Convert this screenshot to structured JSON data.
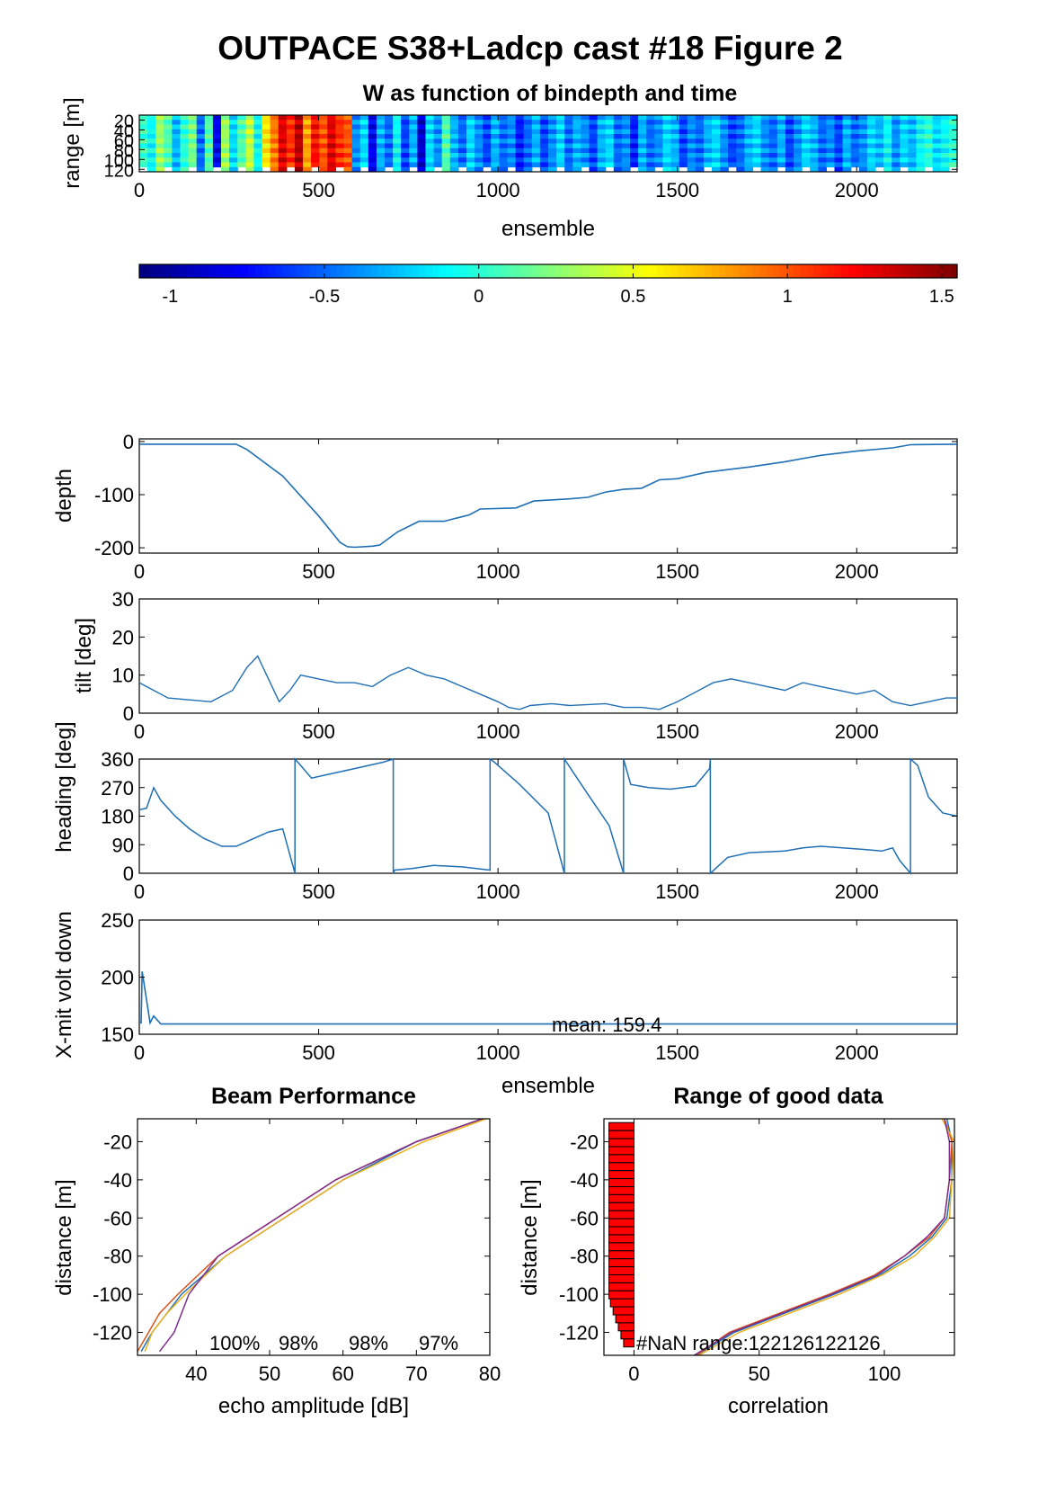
{
  "figure": {
    "title": "OUTPACE S38+Ladcp cast #18 Figure 2"
  },
  "colors": {
    "line": "#1f6fb5",
    "beam": [
      "#1f6fb5",
      "#d95319",
      "#edb120",
      "#7e2f8e"
    ],
    "nan_bars": "#ff0000"
  },
  "chart_data": [
    {
      "id": "w_image",
      "type": "heatmap",
      "title": "W as function of bindepth and time",
      "xlabel": "ensemble",
      "ylabel": "range [m]",
      "xlim": [
        0,
        2280
      ],
      "ylim": [
        125,
        10
      ],
      "x_ticks": [
        "0",
        "500",
        "1000",
        "1500",
        "2000"
      ],
      "y_ticks": [
        "20",
        "40",
        "60",
        "80",
        "100",
        "120"
      ],
      "colormap": "jet",
      "clim": [
        -1.1,
        1.55
      ],
      "column_values": [
        0.05,
        -0.1,
        0.3,
        0.1,
        -0.3,
        0.0,
        0.2,
        -0.5,
        0.1,
        -0.8,
        0.3,
        -0.2,
        0.1,
        0.4,
        -0.1,
        0.6,
        0.9,
        1.3,
        1.1,
        1.4,
        0.8,
        1.2,
        1.0,
        1.3,
        1.1,
        1.0,
        -0.4,
        -0.2,
        -0.8,
        -0.3,
        -0.5,
        -0.1,
        -0.6,
        -0.3,
        -0.9,
        -0.2,
        -0.4,
        0.1,
        -0.3,
        -0.5,
        -0.2,
        -0.4,
        -0.6,
        -0.3,
        -0.5,
        -0.4,
        -0.7,
        -0.5,
        -0.3,
        -0.6,
        -0.4,
        -0.2,
        -0.5,
        -0.3,
        -0.4,
        -0.6,
        -0.3,
        -0.2,
        -0.5,
        -0.4,
        -0.7,
        -0.3,
        -0.5,
        -0.4,
        -0.2,
        -0.3,
        -0.6,
        -0.4,
        -0.5,
        -0.3,
        -0.2,
        -0.4,
        -0.6,
        -0.5,
        -0.3,
        -0.2,
        -0.4,
        -0.5,
        -0.3,
        -0.6,
        -0.4,
        -0.2,
        -0.3,
        -0.5,
        -0.4,
        -0.6,
        -0.3,
        -0.5,
        -0.4,
        -0.2,
        -0.3,
        -0.1,
        -0.4,
        -0.2,
        -0.3,
        -0.1,
        0.0,
        -0.2,
        -0.1,
        0.0
      ],
      "colorbar": {
        "clim": [
          -1.1,
          1.55
        ],
        "ticks": [
          -1,
          -0.5,
          0,
          0.5,
          1,
          1.5
        ],
        "tick_labels": [
          "-1",
          "-0.5",
          "0",
          "0.5",
          "1",
          "1.5"
        ]
      }
    },
    {
      "id": "depth",
      "type": "line",
      "ylabel": "depth",
      "xlim": [
        0,
        2280
      ],
      "ylim": [
        -210,
        5
      ],
      "x_ticks": [
        "0",
        "500",
        "1000",
        "1500",
        "2000"
      ],
      "y_ticks": [
        "0",
        "-100",
        "-200"
      ],
      "x": [
        0,
        270,
        300,
        400,
        500,
        560,
        580,
        600,
        650,
        670,
        720,
        780,
        850,
        920,
        950,
        1050,
        1100,
        1200,
        1250,
        1300,
        1350,
        1400,
        1450,
        1500,
        1580,
        1650,
        1700,
        1800,
        1900,
        2000,
        2100,
        2150,
        2280
      ],
      "y": [
        -5,
        -5,
        -15,
        -65,
        -140,
        -190,
        -198,
        -199,
        -197,
        -195,
        -170,
        -150,
        -150,
        -138,
        -127,
        -125,
        -112,
        -108,
        -105,
        -95,
        -90,
        -88,
        -72,
        -70,
        -58,
        -52,
        -48,
        -38,
        -26,
        -18,
        -12,
        -6,
        -5
      ]
    },
    {
      "id": "tilt",
      "type": "line",
      "ylabel": "tilt [deg]",
      "xlim": [
        0,
        2280
      ],
      "ylim": [
        0,
        30
      ],
      "x_ticks": [
        "0",
        "500",
        "1000",
        "1500",
        "2000"
      ],
      "y_ticks": [
        "0",
        "10",
        "20",
        "30"
      ],
      "x": [
        0,
        40,
        80,
        140,
        200,
        260,
        300,
        330,
        360,
        390,
        420,
        450,
        500,
        550,
        600,
        650,
        700,
        750,
        800,
        850,
        900,
        950,
        1000,
        1030,
        1060,
        1090,
        1150,
        1200,
        1300,
        1350,
        1400,
        1450,
        1500,
        1560,
        1600,
        1650,
        1700,
        1750,
        1800,
        1850,
        1900,
        1950,
        2000,
        2050,
        2100,
        2150,
        2200,
        2250,
        2280
      ],
      "y": [
        8,
        6,
        4,
        3.5,
        3,
        6,
        12,
        15,
        9,
        3,
        6,
        10,
        9,
        8,
        8,
        7,
        10,
        12,
        10,
        9,
        7,
        5,
        3,
        1.5,
        1,
        2,
        2.5,
        2,
        2.5,
        1.5,
        1.5,
        1,
        3,
        6,
        8,
        9,
        8,
        7,
        6,
        8,
        7,
        6,
        5,
        6,
        3,
        2,
        3,
        4,
        4
      ]
    },
    {
      "id": "heading",
      "type": "line",
      "ylabel": "heading [deg]",
      "xlim": [
        0,
        2280
      ],
      "ylim": [
        0,
        360
      ],
      "x_ticks": [
        "0",
        "500",
        "1000",
        "1500",
        "2000"
      ],
      "y_ticks": [
        "0",
        "90",
        "180",
        "270",
        "360"
      ],
      "x": [
        0,
        20,
        40,
        60,
        100,
        140,
        180,
        230,
        270,
        320,
        360,
        400,
        434,
        434,
        450,
        480,
        520,
        600,
        680,
        708,
        708,
        712,
        760,
        820,
        900,
        978,
        978,
        990,
        1060,
        1140,
        1185,
        1185,
        1250,
        1310,
        1350,
        1350,
        1370,
        1420,
        1480,
        1550,
        1590,
        1592,
        1592,
        1640,
        1700,
        1800,
        1850,
        1900,
        1960,
        2020,
        2070,
        2100,
        2120,
        2150,
        2150,
        2170,
        2200,
        2240,
        2280
      ],
      "y": [
        200,
        205,
        270,
        230,
        180,
        140,
        110,
        85,
        85,
        110,
        130,
        140,
        0,
        360,
        340,
        300,
        310,
        330,
        350,
        360,
        0,
        10,
        15,
        25,
        20,
        10,
        360,
        350,
        280,
        190,
        0,
        360,
        250,
        150,
        0,
        360,
        280,
        270,
        265,
        275,
        330,
        360,
        0,
        50,
        65,
        70,
        80,
        85,
        80,
        75,
        70,
        80,
        40,
        0,
        360,
        340,
        240,
        190,
        180
      ]
    },
    {
      "id": "xmit",
      "type": "line",
      "ylabel": "X-mit volt down",
      "xlabel": "ensemble",
      "xlim": [
        0,
        2280
      ],
      "ylim": [
        150,
        250
      ],
      "x_ticks": [
        "0",
        "500",
        "1000",
        "1500",
        "2000"
      ],
      "y_ticks": [
        "150",
        "200",
        "250"
      ],
      "annotation": "mean: 159.4",
      "x": [
        0,
        5,
        8,
        30,
        40,
        60,
        2280
      ],
      "y": [
        160,
        160,
        205,
        160,
        166,
        159,
        159
      ]
    },
    {
      "id": "beam_performance",
      "type": "line",
      "title": "Beam Performance",
      "xlabel": "echo amplitude [dB]",
      "ylabel": "distance [m]",
      "xlim": [
        32,
        80
      ],
      "ylim": [
        -132,
        -8
      ],
      "x_ticks": [
        "40",
        "50",
        "60",
        "70",
        "80"
      ],
      "y_ticks": [
        "-20",
        "-40",
        "-60",
        "-80",
        "-100",
        "-120"
      ],
      "annotations": [
        "100%",
        "98%",
        "98%",
        "97%"
      ],
      "y": [
        -8,
        -20,
        -40,
        -60,
        -80,
        -100,
        -110,
        -120,
        -130
      ],
      "series": [
        {
          "values": [
            79,
            70,
            60,
            52,
            44,
            38,
            36,
            34,
            32.5
          ]
        },
        {
          "values": [
            79,
            70,
            59,
            51,
            43,
            37.5,
            35,
            33.5,
            32
          ]
        },
        {
          "values": [
            79.5,
            71,
            60,
            52,
            44,
            38.5,
            36,
            34,
            33
          ]
        },
        {
          "values": [
            79,
            70,
            59,
            51,
            43,
            39,
            38,
            37,
            35
          ]
        }
      ]
    },
    {
      "id": "range_good_data",
      "type": "line",
      "title": "Range of good data",
      "xlabel": "correlation",
      "ylabel": "distance [m]",
      "xlim": [
        -12,
        128
      ],
      "ylim": [
        -132,
        -8
      ],
      "x_ticks": [
        "0",
        "50",
        "100"
      ],
      "y_ticks": [
        "-20",
        "-40",
        "-60",
        "-80",
        "-100",
        "-120"
      ],
      "annotation": "#NaN range:122126122126",
      "y": [
        -8,
        -20,
        -40,
        -60,
        -70,
        -80,
        -90,
        -100,
        -110,
        -120,
        -132
      ],
      "series": [
        {
          "values": [
            125,
            127,
            127,
            125,
            119,
            110,
            98,
            80,
            60,
            40,
            25
          ]
        },
        {
          "values": [
            124,
            127,
            126,
            124,
            118,
            108,
            96,
            78,
            58,
            38,
            25
          ]
        },
        {
          "values": [
            123,
            128,
            127,
            126,
            120,
            112,
            99,
            82,
            62,
            42,
            26
          ]
        },
        {
          "values": [
            124,
            126,
            126,
            124,
            117,
            108,
            97,
            79,
            59,
            39,
            24
          ]
        }
      ],
      "nan_bars": {
        "x_from": -10,
        "x_to": 0
      }
    }
  ]
}
